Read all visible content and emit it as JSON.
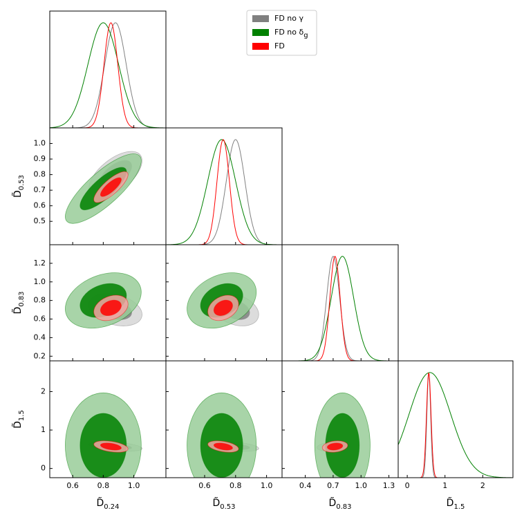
{
  "chart_data": {
    "type": "corner",
    "params": [
      {
        "label": "D̃",
        "sub": "0.24",
        "lim": [
          0.45,
          1.21
        ],
        "xticks": [
          0.6,
          0.8,
          {
            "value": 1,
            "label": "1.0"
          }
        ]
      },
      {
        "label": "D̃",
        "sub": "0.53",
        "lim": [
          0.35,
          1.1
        ],
        "xticks": [
          0.6,
          0.8,
          {
            "value": 1,
            "label": "1.0"
          }
        ],
        "yticks": [
          0.5,
          0.6,
          0.7,
          0.8,
          0.9,
          {
            "value": 1,
            "label": "1.0"
          }
        ]
      },
      {
        "label": "D̃",
        "sub": "0.83",
        "lim": [
          0.15,
          1.4
        ],
        "xticks": [
          0.4,
          0.7,
          {
            "value": 1,
            "label": "1.0"
          },
          1.3
        ],
        "yticks": [
          0.2,
          0.4,
          0.6,
          0.8,
          {
            "value": 1,
            "label": "1.0"
          },
          1.2
        ]
      },
      {
        "label": "D̃",
        "sub": "1.5",
        "lim": [
          -0.24,
          2.8
        ],
        "xticks": [
          0,
          1,
          2
        ],
        "yticks": [
          0,
          1,
          2
        ]
      }
    ],
    "series": [
      {
        "name": "FD no γ",
        "color": "#808080",
        "mean": [
          0.88,
          0.8,
          0.7,
          0.57
        ],
        "sigma": [
          0.07,
          0.06,
          0.07,
          0.05
        ],
        "corr": [
          0.6,
          -0.3,
          -0.3,
          -0.4,
          -0.4,
          0.2
        ]
      },
      {
        "name": "FD no δ",
        "name_sub": "g",
        "color": "#008000",
        "mean": [
          0.8,
          0.71,
          0.8,
          0.6
        ],
        "sigma": [
          0.1,
          0.09,
          0.12,
          0.55
        ],
        "corr": [
          0.8,
          0.3,
          0.3,
          0,
          0,
          0
        ]
      },
      {
        "name": "FD",
        "color": "#ff0000",
        "mean": [
          0.85,
          0.72,
          0.72,
          0.57
        ],
        "sigma": [
          0.045,
          0.04,
          0.055,
          0.06
        ],
        "corr": [
          0.8,
          0.3,
          0.3,
          -0.4,
          -0.4,
          0.2
        ]
      }
    ],
    "legend": "upper right"
  }
}
